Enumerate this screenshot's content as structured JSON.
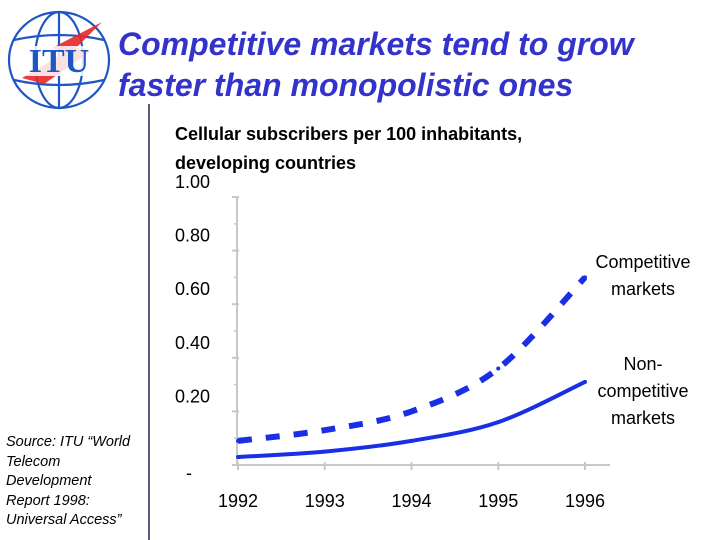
{
  "slide": {
    "title_lines": [
      "Competitive markets tend to grow",
      "faster than monopolistic ones"
    ],
    "logo": {
      "text": "ITU"
    },
    "source_lines": [
      "Source: ITU “World",
      "Telecom",
      "Development",
      "Report 1998:",
      "Universal Access”"
    ]
  },
  "colors": {
    "title": "#3333cc",
    "series": "#1a2ee6",
    "axis": "#c8c8c8",
    "logo": "#1f56c6",
    "lightning": "#e8262a"
  },
  "chart_data": {
    "type": "line",
    "title_lines": [
      "Cellular subscribers per 100 inhabitants,",
      "developing countries"
    ],
    "x": [
      1992,
      1993,
      1994,
      1995,
      1996
    ],
    "x_tick_labels": [
      "1992",
      "1993",
      "1994",
      "1995",
      "1996"
    ],
    "y_tick_labels": [
      "-",
      "0.20",
      "0.40",
      "0.60",
      "0.80",
      "1.00"
    ],
    "y_ticks": [
      0,
      0.2,
      0.4,
      0.6,
      0.8,
      1.0
    ],
    "ylim": [
      0,
      1.0
    ],
    "xlabel": "",
    "ylabel": "",
    "series": [
      {
        "name": "Competitive markets",
        "label_lines": [
          "Competitive",
          "markets"
        ],
        "style": "dashed",
        "values": [
          0.09,
          0.13,
          0.2,
          0.36,
          0.7
        ]
      },
      {
        "name": "Non-competitive markets",
        "label_lines": [
          "Non-",
          "competitive",
          "markets"
        ],
        "style": "solid",
        "values": [
          0.03,
          0.05,
          0.09,
          0.16,
          0.31
        ]
      }
    ]
  }
}
